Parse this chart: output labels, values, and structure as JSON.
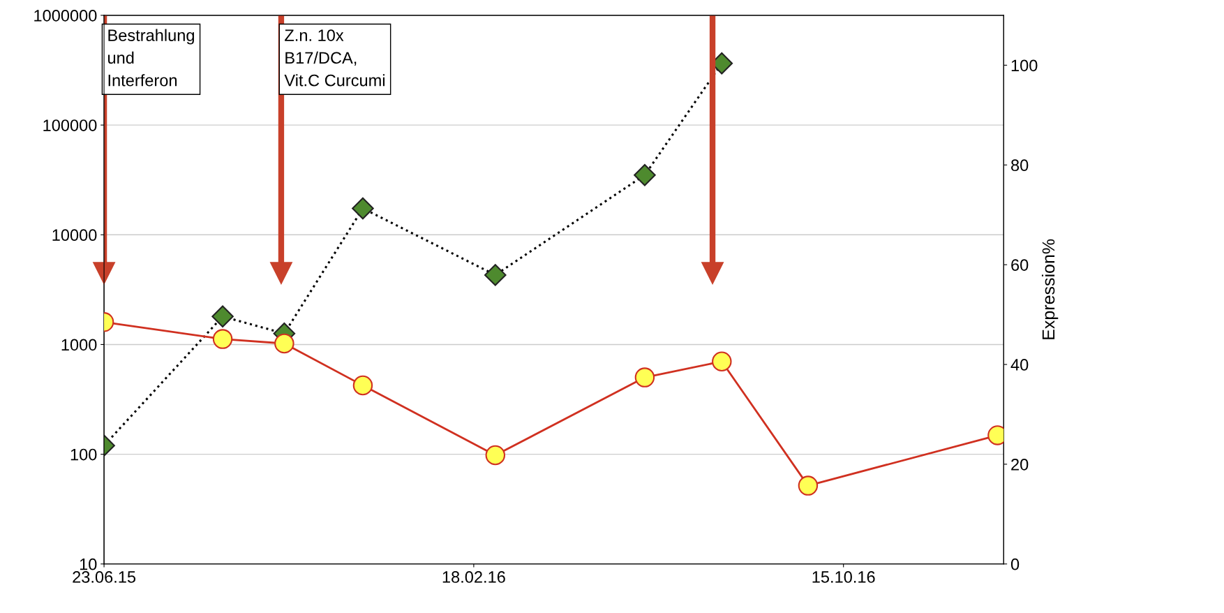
{
  "chart_data": {
    "type": "line",
    "y2label": "Expression%",
    "x": [
      "2015-06-23",
      "2015-09-08",
      "2015-10-18",
      "2015-12-08",
      "2016-03-03",
      "2016-06-08",
      "2016-07-28",
      "2016-09-22",
      "2017-01-23"
    ],
    "series": [
      {
        "color": "#4e8a2e",
        "marker": "diamond",
        "line_style": "dotted",
        "axis": "y",
        "x": [
          "2015-06-23",
          "2015-09-08",
          "2015-10-18",
          "2015-12-08",
          "2016-03-03",
          "2016-06-08",
          "2016-07-28"
        ],
        "values": [
          120,
          1800,
          1260,
          17400,
          4300,
          35000,
          365000
        ]
      },
      {
        "color": "#d03020",
        "marker": "circle",
        "line_style": "solid",
        "axis": "y2",
        "values": [
          48.5,
          45.1,
          44.2,
          35.8,
          21.8,
          37.4,
          40.6,
          15.7,
          25.8
        ]
      }
    ],
    "log": "y",
    "ylim": [
      10,
      1000000
    ],
    "yticks": [
      10,
      100,
      1000,
      10000,
      100000,
      1000000
    ],
    "y2lim": [
      0,
      110
    ],
    "y2ticks": [
      0,
      20,
      40,
      60,
      80,
      100
    ],
    "xlim": [
      "2015-06-23",
      "2017-01-27"
    ],
    "xticks": [
      {
        "value": "2015-06-23",
        "label": "23.06.15"
      },
      {
        "value": "2016-02-18",
        "label": "18.02.16"
      },
      {
        "value": "2016-10-15",
        "label": "15.10.16"
      }
    ],
    "grid": "y",
    "ref_lines": [
      {
        "axis": "x",
        "value": "2015-06-23",
        "color": "#c8402a"
      },
      {
        "axis": "x",
        "value": "2015-10-16",
        "color": "#c8402a"
      },
      {
        "axis": "x",
        "value": "2016-07-22",
        "color": "#c8402a"
      }
    ],
    "annotations": [
      "Bestrahlung\nund\nInterferon",
      "Z.n. 10x\nB17/DCA,\nVit.C Curcumi"
    ]
  }
}
